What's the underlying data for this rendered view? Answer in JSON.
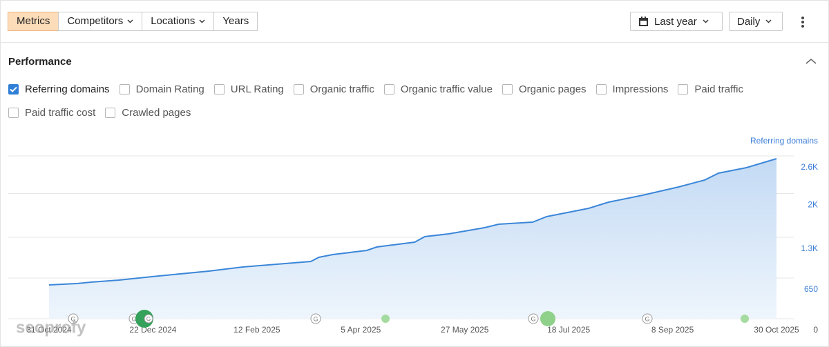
{
  "toolbar": {
    "tabs": [
      "Metrics",
      "Competitors",
      "Locations",
      "Years"
    ],
    "date_range": "Last year",
    "granularity": "Daily"
  },
  "panel": {
    "title": "Performance",
    "metrics": [
      {
        "label": "Referring domains",
        "checked": true
      },
      {
        "label": "Domain Rating",
        "checked": false
      },
      {
        "label": "URL Rating",
        "checked": false
      },
      {
        "label": "Organic traffic",
        "checked": false
      },
      {
        "label": "Organic traffic value",
        "checked": false
      },
      {
        "label": "Organic pages",
        "checked": false
      },
      {
        "label": "Impressions",
        "checked": false
      },
      {
        "label": "Paid traffic",
        "checked": false
      },
      {
        "label": "Paid traffic cost",
        "checked": false
      },
      {
        "label": "Crawled pages",
        "checked": false
      }
    ]
  },
  "watermark": "seoprofy",
  "chart_data": {
    "type": "area",
    "ylabel": "Referring domains",
    "color": "#3b86d8",
    "grid": true,
    "x": [
      "2024-10-31",
      "2024-11-14",
      "2024-11-21",
      "2024-12-05",
      "2024-12-25",
      "2025-01-19",
      "2025-02-05",
      "2025-02-22",
      "2025-03-11",
      "2025-03-15",
      "2025-03-22",
      "2025-04-08",
      "2025-04-13",
      "2025-05-02",
      "2025-05-07",
      "2025-05-19",
      "2025-06-06",
      "2025-06-13",
      "2025-06-30",
      "2025-07-07",
      "2025-07-28",
      "2025-08-07",
      "2025-08-24",
      "2025-09-11",
      "2025-09-24",
      "2025-10-01",
      "2025-10-15",
      "2025-10-30"
    ],
    "values": [
      540,
      562,
      584,
      617,
      683,
      760,
      826,
      870,
      914,
      980,
      1025,
      1091,
      1146,
      1223,
      1311,
      1355,
      1454,
      1509,
      1542,
      1630,
      1763,
      1862,
      1972,
      2104,
      2214,
      2325,
      2413,
      2556
    ],
    "xlim": [
      "2024-10-31",
      "2025-10-30"
    ],
    "xticks": [
      {
        "value": "2024-10-31",
        "label": "31 Oct 2024"
      },
      {
        "value": "2024-12-22",
        "label": "22 Dec 2024"
      },
      {
        "value": "2025-02-12",
        "label": "12 Feb 2025"
      },
      {
        "value": "2025-04-05",
        "label": "5 Apr 2025"
      },
      {
        "value": "2025-05-27",
        "label": "27 May 2025"
      },
      {
        "value": "2025-07-18",
        "label": "18 Jul 2025"
      },
      {
        "value": "2025-09-08",
        "label": "8 Sep 2025"
      },
      {
        "value": "2025-10-30",
        "label": "30 Oct 2025"
      }
    ],
    "ylim": [
      0,
      2600
    ],
    "yticks": [
      0,
      650,
      {
        "value": 1300,
        "label": "1.3K"
      },
      {
        "value": 2000,
        "label": "2K"
      },
      {
        "value": 2600,
        "label": "2.6K"
      }
    ]
  }
}
